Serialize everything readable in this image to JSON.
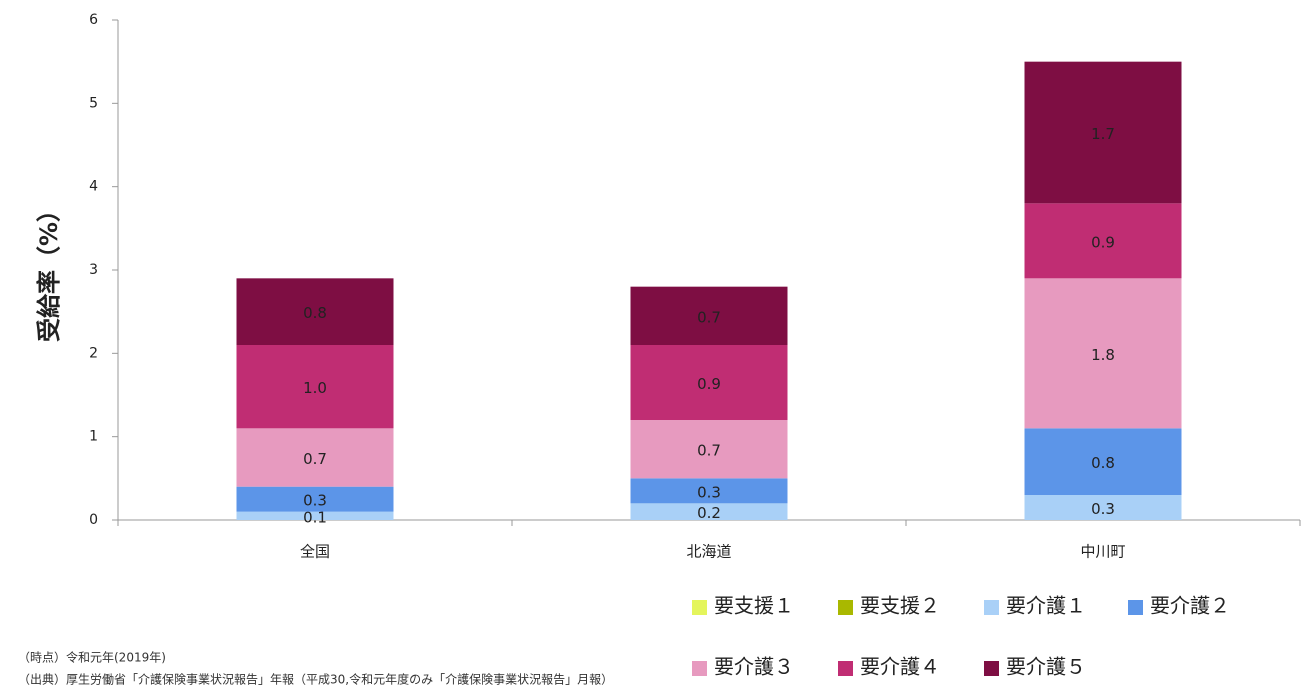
{
  "chart_data": {
    "type": "stacked-bar",
    "y_label": "受給率（%）",
    "categories": [
      "全国",
      "北海道",
      "中川町"
    ],
    "series": [
      {
        "name": "要支援１",
        "color": "#e4f55c",
        "values": [
          0,
          0,
          0
        ]
      },
      {
        "name": "要支援２",
        "color": "#a9b800",
        "values": [
          0,
          0,
          0
        ]
      },
      {
        "name": "要介護１",
        "color": "#a9d0f7",
        "values": [
          0.1,
          0.2,
          0.3
        ],
        "value_labels": [
          "0.1",
          "0.2",
          "0.3"
        ]
      },
      {
        "name": "要介護２",
        "color": "#5c95e8",
        "values": [
          0.3,
          0.3,
          0.8
        ],
        "value_labels": [
          "0.3",
          "0.3",
          "0.8"
        ]
      },
      {
        "name": "要介護３",
        "color": "#e79abf",
        "values": [
          0.7,
          0.7,
          1.8
        ],
        "value_labels": [
          "0.7",
          "0.7",
          "1.8"
        ]
      },
      {
        "name": "要介護４",
        "color": "#c02d73",
        "values": [
          1.0,
          0.9,
          0.9
        ],
        "value_labels": [
          "1.0",
          "0.9",
          "0.9"
        ]
      },
      {
        "name": "要介護５",
        "color": "#7e0e43",
        "values": [
          0.8,
          0.7,
          1.7
        ],
        "value_labels": [
          "0.8",
          "0.7",
          "1.7"
        ]
      }
    ],
    "ylim": [
      0,
      6
    ],
    "yticks": [
      0,
      1,
      2,
      3,
      4,
      5,
      6
    ],
    "grid": false
  },
  "notes": [
    "（時点）令和元年(2019年)",
    "（出典）厚生労働省「介護保険事業状況報告」年報（平成30,令和元年度のみ「介護保険事業状況報告」月報）"
  ]
}
